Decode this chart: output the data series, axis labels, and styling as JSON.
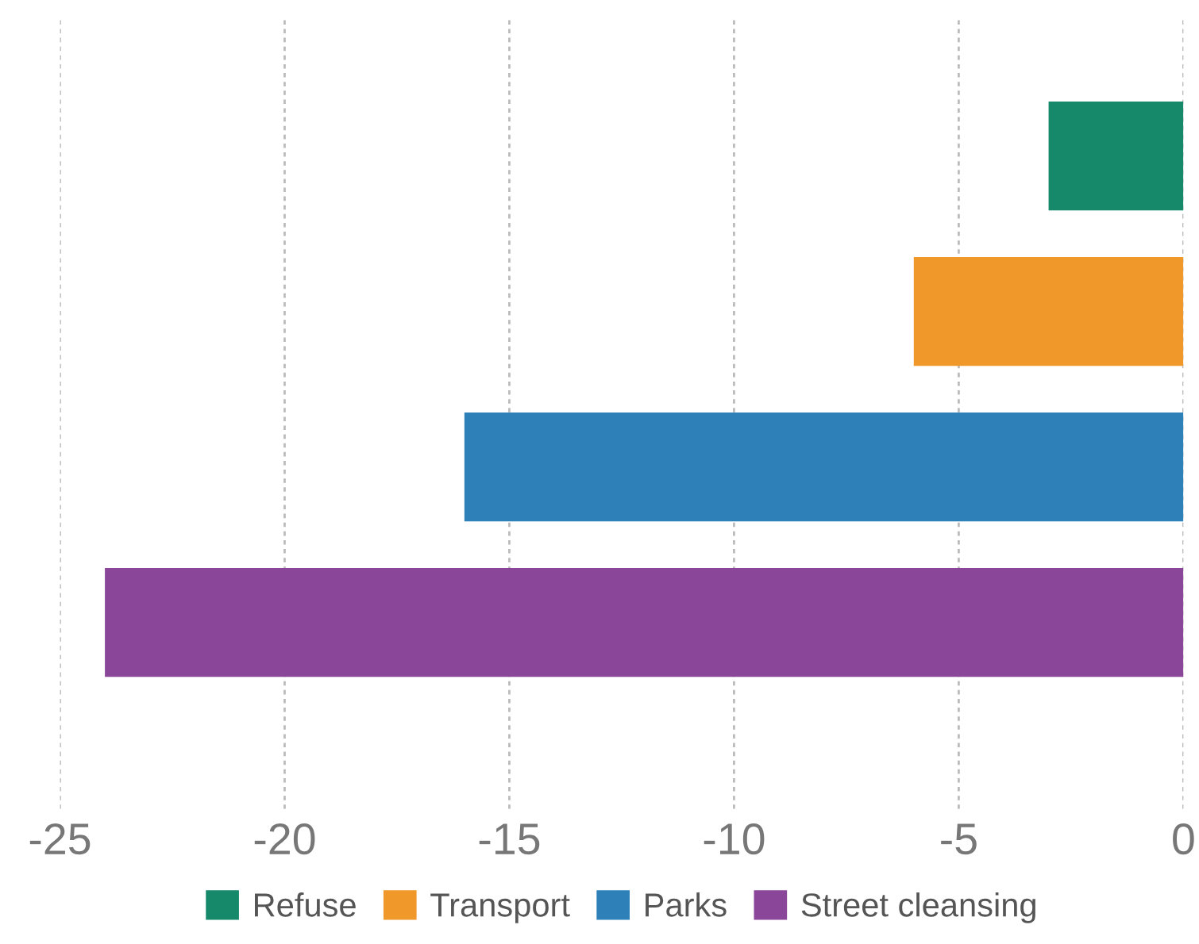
{
  "chart_data": {
    "type": "bar",
    "orientation": "horizontal",
    "categories": [
      null,
      null,
      null,
      null
    ],
    "series": [
      {
        "name": "Refuse",
        "color": "#16896b",
        "values": [
          -3,
          null,
          null,
          null
        ]
      },
      {
        "name": "Transport",
        "color": "#f0982a",
        "values": [
          null,
          -6,
          null,
          null
        ]
      },
      {
        "name": "Parks",
        "color": "#2e80b8",
        "values": [
          null,
          null,
          -16,
          null
        ]
      },
      {
        "name": "Street cleansing",
        "color": "#8a4799",
        "values": [
          null,
          null,
          null,
          -24
        ]
      }
    ],
    "xlim": [
      -25,
      0
    ],
    "xticks": [
      -25,
      -20,
      -15,
      -10,
      -5,
      0
    ],
    "grid": "x",
    "legend": "bottom"
  }
}
